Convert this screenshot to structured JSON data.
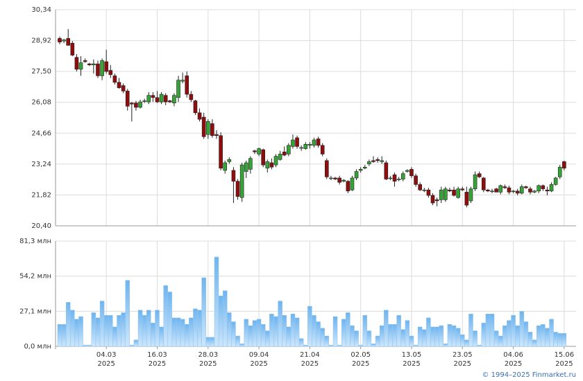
{
  "chart_data": [
    {
      "type": "candlestick",
      "categories": [
        null,
        null,
        null,
        null,
        null,
        null,
        null,
        null,
        null,
        null,
        null,
        "04.03 2025",
        null,
        null,
        null,
        null,
        null,
        null,
        null,
        null,
        null,
        null,
        null,
        "16.03 2025",
        null,
        null,
        null,
        null,
        null,
        null,
        null,
        null,
        null,
        null,
        null,
        "28.03 2025",
        null,
        null,
        null,
        null,
        null,
        null,
        null,
        null,
        null,
        null,
        null,
        "09.04 2025",
        null,
        null,
        null,
        null,
        null,
        null,
        null,
        null,
        null,
        null,
        null,
        "21.04 2025",
        null,
        null,
        null,
        null,
        null,
        null,
        null,
        null,
        null,
        null,
        null,
        "02.05 2025",
        null,
        null,
        null,
        null,
        null,
        null,
        null,
        null,
        null,
        null,
        null,
        "13.05 2025",
        null,
        null,
        null,
        null,
        null,
        null,
        null,
        null,
        null,
        null,
        null,
        "23.05 2025",
        null,
        null,
        null,
        null,
        null,
        null,
        null,
        null,
        null,
        null,
        null,
        "04.06 2025",
        null,
        null,
        null,
        null,
        null,
        null,
        null,
        null,
        null,
        null,
        null,
        "15.06 2025"
      ],
      "open": [
        29.02,
        28.9,
        29.02,
        28.8,
        28.15,
        27.6,
        28.0,
        27.85,
        27.8,
        27.85,
        27.3,
        27.95,
        27.55,
        27.3,
        27.0,
        26.85,
        26.6,
        26.05,
        26.05,
        25.85,
        26.15,
        26.1,
        26.4,
        26.3,
        26.1,
        26.4,
        26.15,
        26.05,
        26.3,
        27.05,
        27.3,
        26.45,
        26.15,
        25.6,
        25.4,
        24.6,
        25.1,
        24.6,
        24.55,
        22.95,
        23.35,
        22.95,
        22.45,
        21.7,
        22.9,
        23.0,
        23.85,
        23.7,
        23.9,
        23.05,
        23.3,
        23.2,
        23.45,
        23.8,
        23.7,
        24.05,
        24.45,
        24.0,
        23.95,
        24.1,
        24.1,
        24.4,
        24.1,
        23.4,
        22.6,
        22.6,
        22.6,
        22.45,
        22.45,
        22.05,
        22.6,
        22.95,
        23.05,
        23.25,
        23.4,
        23.45,
        23.35,
        23.3,
        22.6,
        22.75,
        22.55,
        22.55,
        22.9,
        23.0,
        22.7,
        22.3,
        22.05,
        22.05,
        21.8,
        21.6,
        21.6,
        21.6,
        22.05,
        22.05,
        21.7,
        22.1,
        21.95,
        21.55,
        22.1,
        22.8,
        22.6,
        22.05,
        22.0,
        22.1,
        21.95,
        22.2,
        22.15,
        22.0,
        22.0,
        21.9,
        22.2,
        22.1,
        21.95,
        22.0,
        22.25,
        22.05,
        22.0,
        22.3,
        22.65,
        23.35
      ],
      "high": [
        29.1,
        29.0,
        29.45,
        28.9,
        28.3,
        28.2,
        28.1,
        27.9,
        28.05,
        28.0,
        28.1,
        28.5,
        27.8,
        27.4,
        27.2,
        26.95,
        26.7,
        26.1,
        26.15,
        26.2,
        26.25,
        26.55,
        26.55,
        26.6,
        26.55,
        26.5,
        26.2,
        26.5,
        27.3,
        27.45,
        27.5,
        26.6,
        26.2,
        25.8,
        25.6,
        25.3,
        25.3,
        24.8,
        24.7,
        23.4,
        23.55,
        23.1,
        22.55,
        23.3,
        23.4,
        23.6,
        23.9,
        24.0,
        23.95,
        23.45,
        23.5,
        23.7,
        23.85,
        24.05,
        24.2,
        24.6,
        24.55,
        24.1,
        24.25,
        24.25,
        24.45,
        24.5,
        24.2,
        23.5,
        22.7,
        22.65,
        22.7,
        22.55,
        22.5,
        22.7,
        23.0,
        23.1,
        23.2,
        23.45,
        23.6,
        23.55,
        23.6,
        23.4,
        22.7,
        22.85,
        22.65,
        22.9,
        23.0,
        23.1,
        22.8,
        22.4,
        22.15,
        22.15,
        21.9,
        21.7,
        22.2,
        22.2,
        22.15,
        22.2,
        22.2,
        22.2,
        22.2,
        22.2,
        22.9,
        22.9,
        22.65,
        22.1,
        22.1,
        22.15,
        22.3,
        22.3,
        22.25,
        22.05,
        22.1,
        22.3,
        22.25,
        22.2,
        22.05,
        22.3,
        22.3,
        22.2,
        22.4,
        22.65,
        23.2,
        23.4
      ],
      "low": [
        28.75,
        28.8,
        28.7,
        28.2,
        27.5,
        27.3,
        27.9,
        27.75,
        27.4,
        27.2,
        27.1,
        27.4,
        27.2,
        26.9,
        26.7,
        26.5,
        25.7,
        25.2,
        25.7,
        25.8,
        26.05,
        26.0,
        26.1,
        26.05,
        26.0,
        25.95,
        26.05,
        25.9,
        26.1,
        26.95,
        26.3,
        26.1,
        25.5,
        25.2,
        24.4,
        24.4,
        24.45,
        24.4,
        22.95,
        22.8,
        23.25,
        21.45,
        21.6,
        21.5,
        22.6,
        22.8,
        23.7,
        23.6,
        23.1,
        22.85,
        23.0,
        23.1,
        23.4,
        23.6,
        23.6,
        23.95,
        23.95,
        23.85,
        23.9,
        23.95,
        24.0,
        24.0,
        23.6,
        22.55,
        22.5,
        22.5,
        22.3,
        22.4,
        21.9,
        22.0,
        22.5,
        22.85,
        23.0,
        23.15,
        23.3,
        23.3,
        23.25,
        22.5,
        22.5,
        22.2,
        22.45,
        22.45,
        22.85,
        22.6,
        22.2,
        22.0,
        21.95,
        21.7,
        21.35,
        21.3,
        21.45,
        21.5,
        21.95,
        21.75,
        21.65,
        22.0,
        21.25,
        21.45,
        22.0,
        22.6,
        21.95,
        21.95,
        21.9,
        21.95,
        21.85,
        22.1,
        21.85,
        21.9,
        21.8,
        21.85,
        22.1,
        21.85,
        21.9,
        21.9,
        22.0,
        21.8,
        21.95,
        22.25,
        22.55,
        22.95
      ],
      "close": [
        28.85,
        28.95,
        28.7,
        28.25,
        27.6,
        27.9,
        27.95,
        27.8,
        27.85,
        27.3,
        28.0,
        27.5,
        27.35,
        27.0,
        26.75,
        26.6,
        25.9,
        26.0,
        25.85,
        26.1,
        26.15,
        26.4,
        26.3,
        26.1,
        26.45,
        26.1,
        26.1,
        26.4,
        27.1,
        27.1,
        26.45,
        26.2,
        25.6,
        25.3,
        24.5,
        25.2,
        24.55,
        24.55,
        23.05,
        23.3,
        23.45,
        22.45,
        21.75,
        23.2,
        23.3,
        23.5,
        23.8,
        23.95,
        23.2,
        23.35,
        23.1,
        23.6,
        23.7,
        23.65,
        24.1,
        24.35,
        24.05,
        24.0,
        24.15,
        24.15,
        24.35,
        24.1,
        23.7,
        22.65,
        22.6,
        22.55,
        22.4,
        22.5,
        22.0,
        22.6,
        22.9,
        23.0,
        23.1,
        23.35,
        23.35,
        23.4,
        23.4,
        22.55,
        22.6,
        22.45,
        22.55,
        22.8,
        22.95,
        22.7,
        22.3,
        22.05,
        22.05,
        21.8,
        21.45,
        21.55,
        22.05,
        22.1,
        22.0,
        21.8,
        22.1,
        22.05,
        21.35,
        22.1,
        22.75,
        22.65,
        22.05,
        22.0,
        22.0,
        21.95,
        22.25,
        22.15,
        21.95,
        22.0,
        21.9,
        22.2,
        22.15,
        21.95,
        22.0,
        22.25,
        22.1,
        22.0,
        22.3,
        22.6,
        23.1,
        23.05
      ],
      "up_color": "#35a335",
      "down_color": "#8f0d0d",
      "ylim": [
        20.4,
        30.34
      ],
      "yticks": [
        {
          "value": 20.4,
          "label": "20,40"
        },
        {
          "value": 21.82,
          "label": "21,82"
        },
        {
          "value": 23.24,
          "label": "23,24"
        },
        {
          "value": 24.66,
          "label": "24,66"
        },
        {
          "value": 26.08,
          "label": "26,08"
        },
        {
          "value": 27.5,
          "label": "27,50"
        },
        {
          "value": 28.92,
          "label": "28,92"
        },
        {
          "value": 30.34,
          "label": "30,34"
        }
      ],
      "grid": true
    },
    {
      "type": "bar",
      "values": [
        17,
        17,
        34,
        28,
        21,
        23,
        1,
        1,
        26,
        22,
        35,
        24,
        24,
        15,
        24,
        26,
        51,
        1,
        5,
        28,
        24,
        28,
        18,
        28,
        15,
        47,
        42,
        22,
        22,
        21,
        17,
        22,
        29,
        28,
        53,
        7,
        7,
        69,
        39,
        43,
        26,
        19,
        8,
        2,
        21,
        16,
        20,
        21,
        17,
        12,
        25,
        23,
        35,
        24,
        15,
        25,
        22,
        6,
        1,
        31,
        24,
        19,
        14,
        8,
        1,
        23,
        1,
        21,
        26,
        16,
        12,
        1,
        24,
        12,
        2,
        8,
        16,
        28,
        17,
        17,
        24,
        13,
        20,
        8,
        1,
        15,
        13,
        22,
        15,
        15,
        16,
        2,
        17,
        16,
        14,
        9,
        5,
        25,
        12,
        1,
        18,
        25,
        25,
        12,
        8,
        16,
        20,
        24,
        16,
        27,
        19,
        11,
        5,
        16,
        17,
        14,
        21,
        11,
        10,
        10
      ],
      "color": "#8cc6f4",
      "ylim": [
        0,
        81.3
      ],
      "yticks": [
        {
          "value": 0,
          "label": "0,0 млн"
        },
        {
          "value": 27.1,
          "label": "27,1 млн"
        },
        {
          "value": 54.2,
          "label": "54,2 млн"
        },
        {
          "value": 81.3,
          "label": "81,3 млн"
        }
      ],
      "grid": true
    }
  ],
  "footer": "© 1994–2025 Finmarket.ru"
}
